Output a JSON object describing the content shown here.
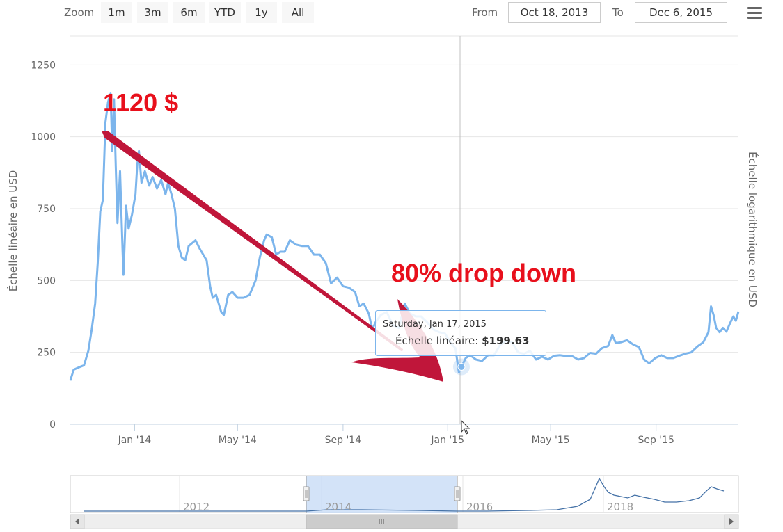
{
  "toolbar": {
    "zoom_label": "Zoom",
    "zoom_buttons": [
      "1m",
      "3m",
      "6m",
      "YTD",
      "1y",
      "All"
    ],
    "from_label": "From",
    "from_value": "Oct 18, 2013",
    "to_label": "To",
    "to_value": "Dec 6, 2015"
  },
  "tooltip": {
    "date": "Saturday, Jan 17, 2015",
    "series_label": "Échelle linéaire:",
    "value": "$199.63"
  },
  "annotations": {
    "peak_label": "1120 $",
    "drop_label": "80% drop down"
  },
  "colors": {
    "series": "#7cb5ec",
    "navigator_series": "#4572a7",
    "navigator_mask": "#c8dcf6",
    "arrow": "#c0163a",
    "annotation_text": "#e8101c",
    "grid": "#e6e6e6"
  },
  "chart_data": {
    "type": "line",
    "title": "",
    "ylabel": "Échelle linéaire en USD",
    "ylabel_right": "Échelle logarithmique en USD",
    "ylim": [
      0,
      1350
    ],
    "yticks": [
      0,
      250,
      500,
      750,
      1000,
      1250
    ],
    "xlim": [
      "2013-10-18",
      "2015-12-06"
    ],
    "xticks": [
      {
        "date": "2014-01-01",
        "label": "Jan '14"
      },
      {
        "date": "2014-05-01",
        "label": "May '14"
      },
      {
        "date": "2014-09-01",
        "label": "Sep '14"
      },
      {
        "date": "2015-01-01",
        "label": "Jan '15"
      },
      {
        "date": "2015-05-01",
        "label": "May '15"
      },
      {
        "date": "2015-09-01",
        "label": "Sep '15"
      }
    ],
    "grid": true,
    "series": [
      {
        "name": "Échelle linéaire",
        "points": [
          [
            "2013-10-18",
            152
          ],
          [
            "2013-10-22",
            190
          ],
          [
            "2013-10-28",
            198
          ],
          [
            "2013-11-03",
            205
          ],
          [
            "2013-11-08",
            255
          ],
          [
            "2013-11-12",
            330
          ],
          [
            "2013-11-16",
            420
          ],
          [
            "2013-11-19",
            560
          ],
          [
            "2013-11-22",
            740
          ],
          [
            "2013-11-25",
            780
          ],
          [
            "2013-11-28",
            1050
          ],
          [
            "2013-12-01",
            1120
          ],
          [
            "2013-12-04",
            1150
          ],
          [
            "2013-12-06",
            950
          ],
          [
            "2013-12-08",
            1130
          ],
          [
            "2013-12-10",
            900
          ],
          [
            "2013-12-12",
            700
          ],
          [
            "2013-12-15",
            880
          ],
          [
            "2013-12-18",
            600
          ],
          [
            "2013-12-19",
            520
          ],
          [
            "2013-12-22",
            760
          ],
          [
            "2013-12-25",
            680
          ],
          [
            "2013-12-29",
            730
          ],
          [
            "2014-01-02",
            800
          ],
          [
            "2014-01-04",
            900
          ],
          [
            "2014-01-06",
            950
          ],
          [
            "2014-01-09",
            840
          ],
          [
            "2014-01-13",
            880
          ],
          [
            "2014-01-18",
            830
          ],
          [
            "2014-01-22",
            860
          ],
          [
            "2014-01-27",
            820
          ],
          [
            "2014-02-01",
            850
          ],
          [
            "2014-02-06",
            800
          ],
          [
            "2014-02-09",
            840
          ],
          [
            "2014-02-13",
            800
          ],
          [
            "2014-02-17",
            750
          ],
          [
            "2014-02-21",
            620
          ],
          [
            "2014-02-25",
            580
          ],
          [
            "2014-03-01",
            570
          ],
          [
            "2014-03-05",
            620
          ],
          [
            "2014-03-09",
            630
          ],
          [
            "2014-03-13",
            640
          ],
          [
            "2014-03-18",
            610
          ],
          [
            "2014-03-22",
            590
          ],
          [
            "2014-03-26",
            570
          ],
          [
            "2014-03-30",
            480
          ],
          [
            "2014-04-02",
            440
          ],
          [
            "2014-04-06",
            450
          ],
          [
            "2014-04-09",
            420
          ],
          [
            "2014-04-12",
            390
          ],
          [
            "2014-04-15",
            380
          ],
          [
            "2014-04-20",
            450
          ],
          [
            "2014-04-25",
            460
          ],
          [
            "2014-05-01",
            440
          ],
          [
            "2014-05-08",
            440
          ],
          [
            "2014-05-15",
            450
          ],
          [
            "2014-05-22",
            500
          ],
          [
            "2014-05-27",
            580
          ],
          [
            "2014-06-01",
            640
          ],
          [
            "2014-06-04",
            660
          ],
          [
            "2014-06-10",
            650
          ],
          [
            "2014-06-15",
            590
          ],
          [
            "2014-06-20",
            600
          ],
          [
            "2014-06-25",
            600
          ],
          [
            "2014-07-01",
            640
          ],
          [
            "2014-07-08",
            625
          ],
          [
            "2014-07-15",
            620
          ],
          [
            "2014-07-22",
            620
          ],
          [
            "2014-07-29",
            590
          ],
          [
            "2014-08-05",
            590
          ],
          [
            "2014-08-12",
            560
          ],
          [
            "2014-08-18",
            490
          ],
          [
            "2014-08-25",
            510
          ],
          [
            "2014-09-01",
            480
          ],
          [
            "2014-09-08",
            475
          ],
          [
            "2014-09-15",
            460
          ],
          [
            "2014-09-20",
            410
          ],
          [
            "2014-09-25",
            420
          ],
          [
            "2014-10-01",
            385
          ],
          [
            "2014-10-05",
            330
          ],
          [
            "2014-10-09",
            355
          ],
          [
            "2014-10-15",
            380
          ],
          [
            "2014-10-22",
            390
          ],
          [
            "2014-10-29",
            345
          ],
          [
            "2014-11-05",
            335
          ],
          [
            "2014-11-12",
            420
          ],
          [
            "2014-11-18",
            385
          ],
          [
            "2014-11-25",
            375
          ],
          [
            "2014-12-01",
            375
          ],
          [
            "2014-12-08",
            355
          ],
          [
            "2014-12-15",
            330
          ],
          [
            "2014-12-22",
            320
          ],
          [
            "2014-12-29",
            315
          ],
          [
            "2015-01-05",
            280
          ],
          [
            "2015-01-10",
            265
          ],
          [
            "2015-01-14",
            180
          ],
          [
            "2015-01-17",
            199.63
          ],
          [
            "2015-01-22",
            230
          ],
          [
            "2015-01-27",
            240
          ],
          [
            "2015-02-03",
            225
          ],
          [
            "2015-02-10",
            220
          ],
          [
            "2015-02-17",
            240
          ],
          [
            "2015-02-24",
            240
          ],
          [
            "2015-03-03",
            275
          ],
          [
            "2015-03-10",
            290
          ],
          [
            "2015-03-17",
            285
          ],
          [
            "2015-03-24",
            250
          ],
          [
            "2015-03-31",
            245
          ],
          [
            "2015-04-07",
            255
          ],
          [
            "2015-04-14",
            225
          ],
          [
            "2015-04-21",
            235
          ],
          [
            "2015-04-28",
            225
          ],
          [
            "2015-05-05",
            238
          ],
          [
            "2015-05-12",
            240
          ],
          [
            "2015-05-19",
            237
          ],
          [
            "2015-05-26",
            237
          ],
          [
            "2015-06-02",
            225
          ],
          [
            "2015-06-09",
            230
          ],
          [
            "2015-06-16",
            248
          ],
          [
            "2015-06-23",
            245
          ],
          [
            "2015-06-30",
            265
          ],
          [
            "2015-07-07",
            272
          ],
          [
            "2015-07-12",
            310
          ],
          [
            "2015-07-16",
            282
          ],
          [
            "2015-07-22",
            285
          ],
          [
            "2015-07-29",
            292
          ],
          [
            "2015-08-05",
            278
          ],
          [
            "2015-08-12",
            268
          ],
          [
            "2015-08-18",
            225
          ],
          [
            "2015-08-24",
            212
          ],
          [
            "2015-08-31",
            230
          ],
          [
            "2015-09-07",
            240
          ],
          [
            "2015-09-14",
            230
          ],
          [
            "2015-09-21",
            230
          ],
          [
            "2015-09-28",
            238
          ],
          [
            "2015-10-05",
            245
          ],
          [
            "2015-10-12",
            250
          ],
          [
            "2015-10-19",
            270
          ],
          [
            "2015-10-26",
            285
          ],
          [
            "2015-11-01",
            320
          ],
          [
            "2015-11-04",
            410
          ],
          [
            "2015-11-07",
            380
          ],
          [
            "2015-11-10",
            335
          ],
          [
            "2015-11-14",
            320
          ],
          [
            "2015-11-18",
            335
          ],
          [
            "2015-11-22",
            322
          ],
          [
            "2015-11-26",
            350
          ],
          [
            "2015-11-30",
            375
          ],
          [
            "2015-12-03",
            360
          ],
          [
            "2015-12-06",
            392
          ]
        ]
      }
    ],
    "navigator": {
      "year_labels": [
        "2012",
        "2014",
        "2016",
        "2018"
      ],
      "selected_range": [
        "2013-10-18",
        "2015-12-06"
      ]
    }
  }
}
